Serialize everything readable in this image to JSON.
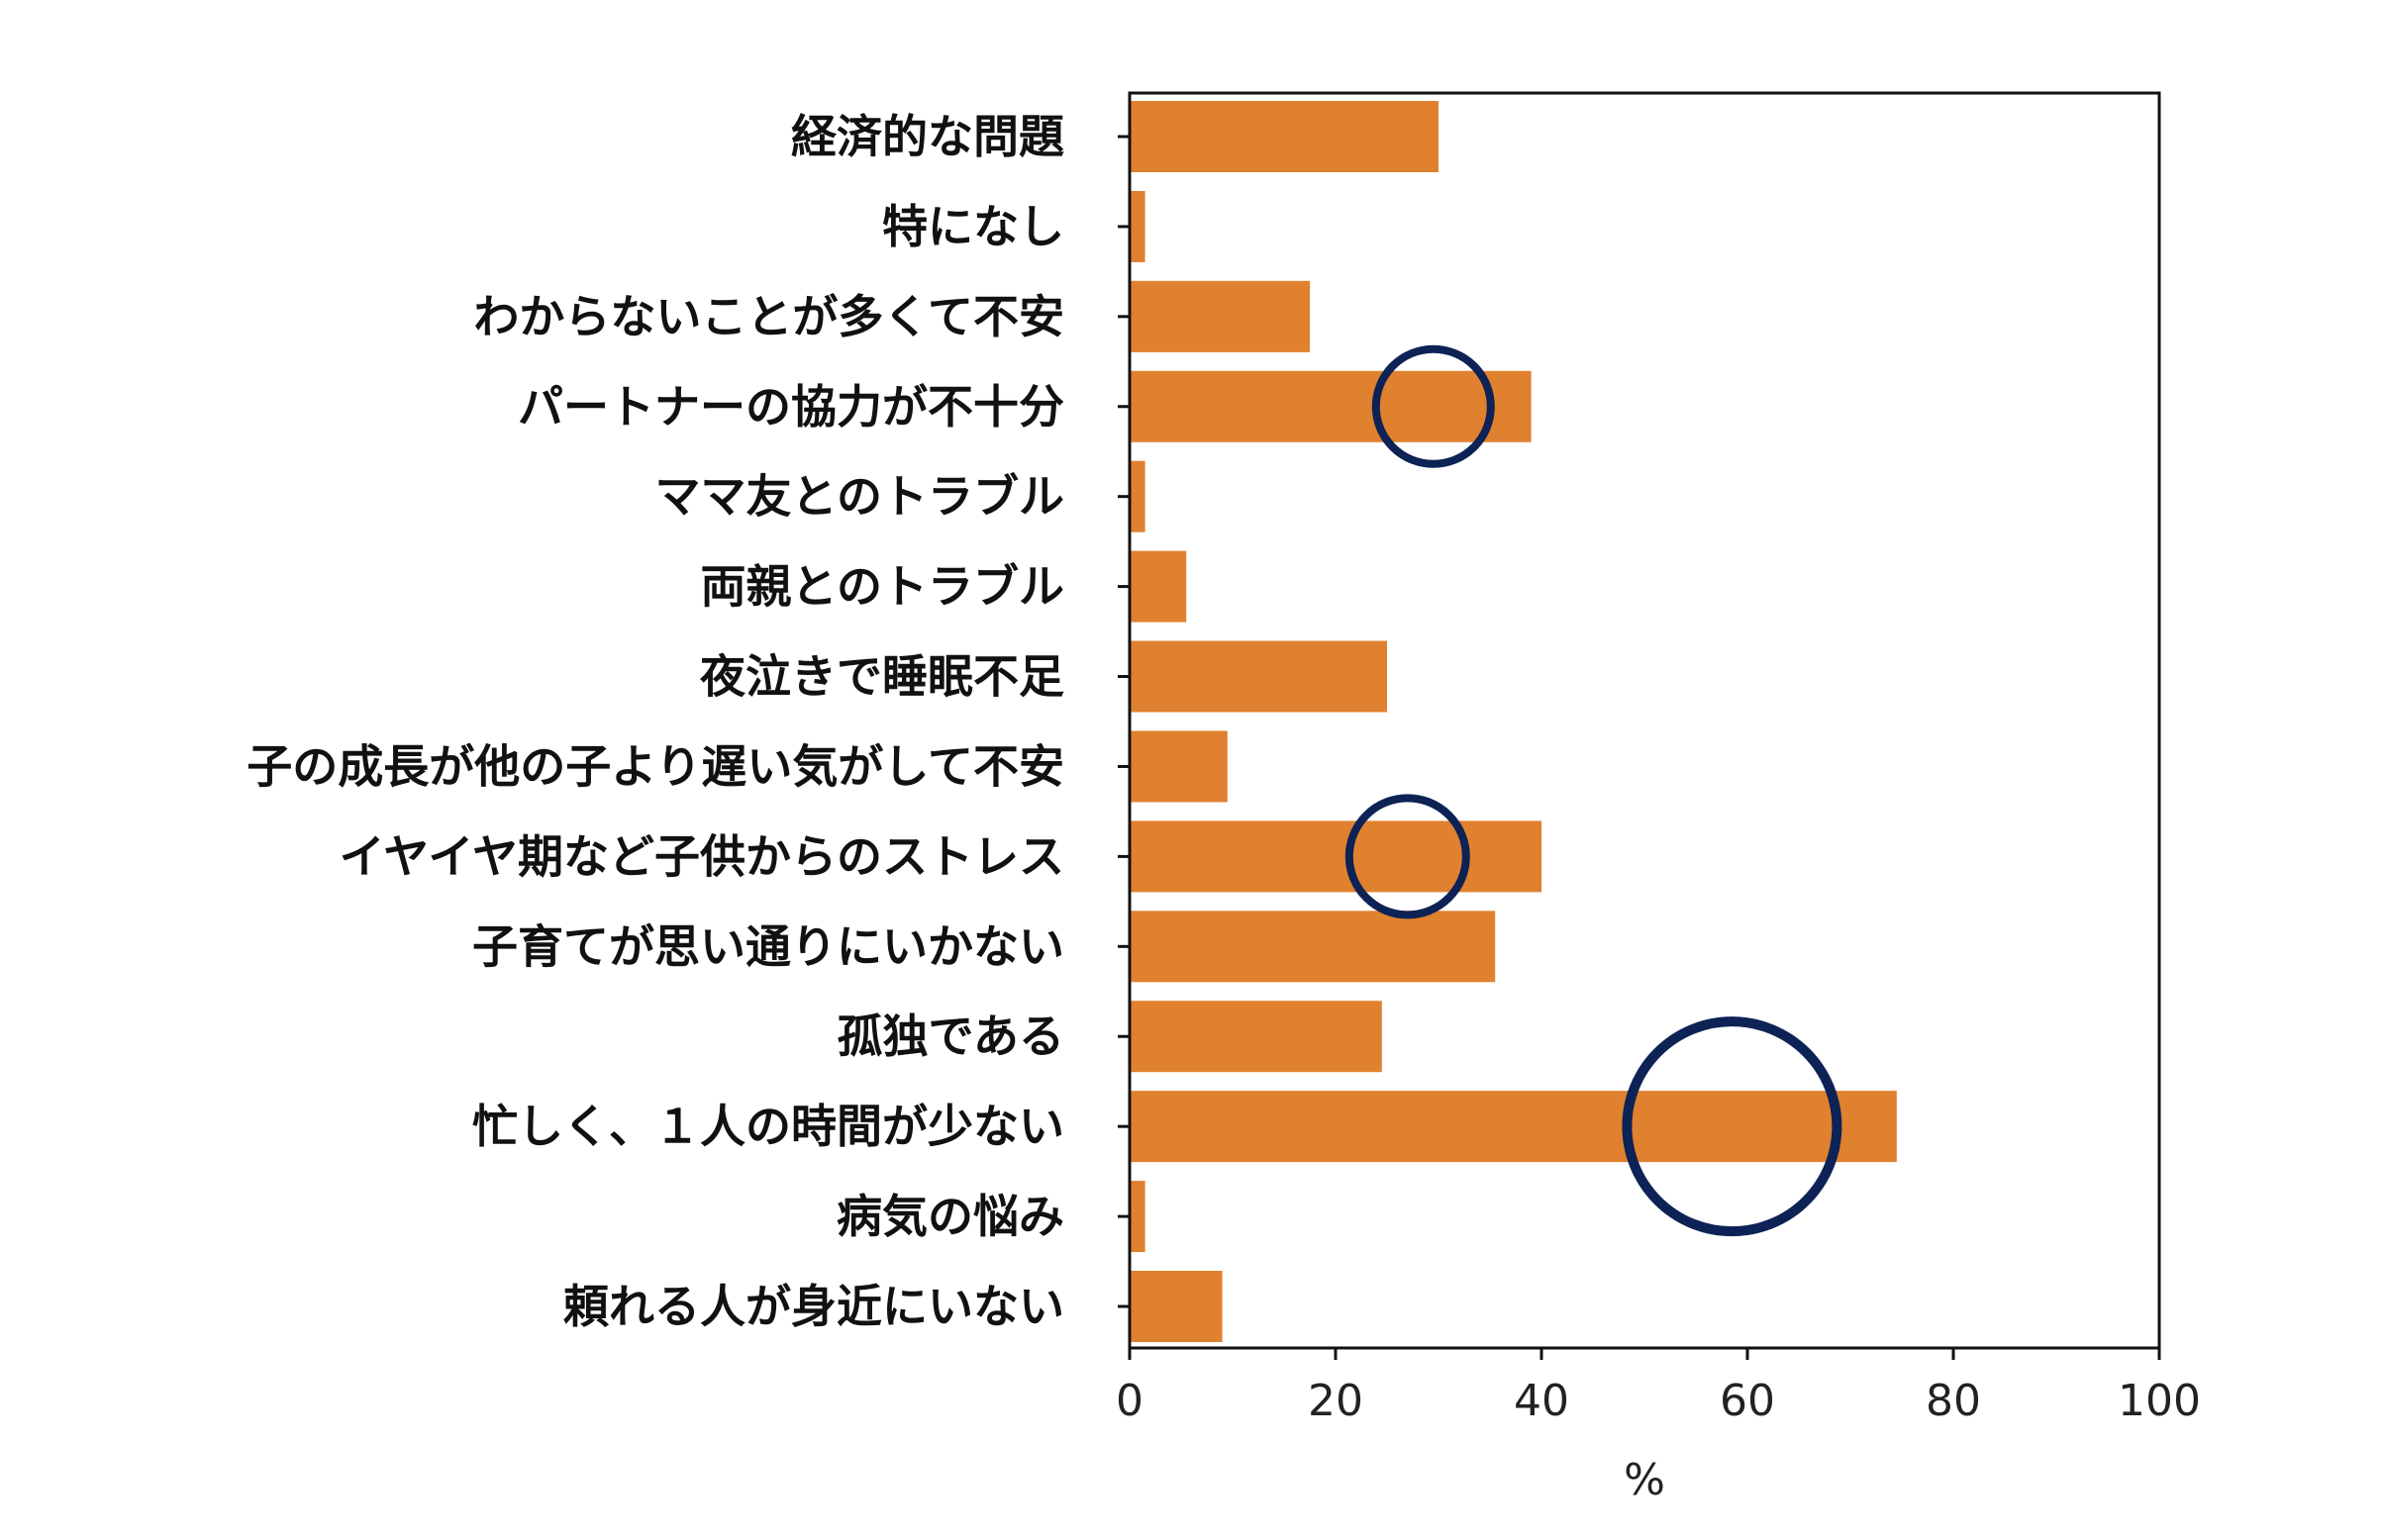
{
  "chart_data": {
    "type": "bar",
    "orientation": "horizontal",
    "categories": [
      "経済的な問題",
      "特になし",
      "わからないことが多くて不安",
      "パートナーの協力が不十分",
      "ママ友とのトラブル",
      "両親とのトラブル",
      "夜泣きで睡眠不足",
      "子の成長が他の子より遅い気がして不安",
      "イヤイヤ期など子供からのストレス",
      "子育てが思い通りにいかない",
      "孤独である",
      "忙しく、１人の時間が少ない",
      "病気の悩み",
      "頼れる人が身近にいない"
    ],
    "values": [
      30,
      1.5,
      17.5,
      39,
      1.5,
      5.5,
      25,
      9.5,
      40,
      35.5,
      24.5,
      74.5,
      1.5,
      9
    ],
    "xlabel": "%",
    "ylabel": "",
    "xlim": [
      0,
      100
    ],
    "xticks": [
      0,
      20,
      40,
      60,
      80,
      100
    ],
    "bar_color": "#e0812f",
    "grid": false,
    "highlights": [
      {
        "category": "パートナーの協力が不十分",
        "x": 29.5
      },
      {
        "category": "イヤイヤ期など子供からのストレス",
        "x": 27
      },
      {
        "category": "忙しく、１人の時間が少ない",
        "x": 58.5
      }
    ],
    "highlight_color": "#0d2255"
  }
}
